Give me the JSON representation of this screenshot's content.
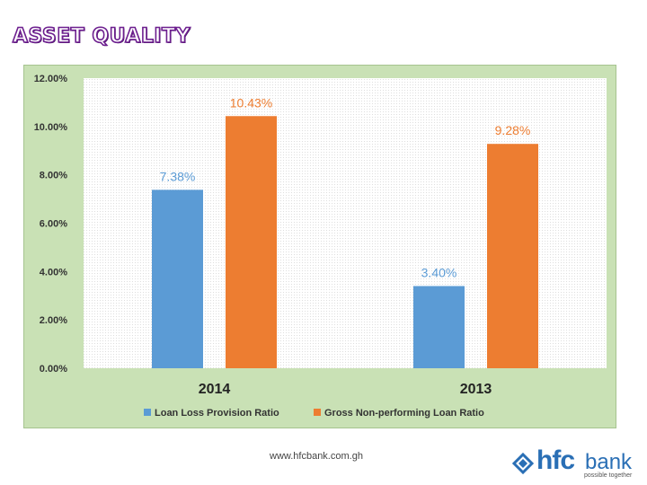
{
  "slide": {
    "title": "ASSET QUALITY",
    "footer_url": "www.hfcbank.com.gh",
    "logo": {
      "hfc": "hfc",
      "bank": "bank",
      "tagline": "possible together"
    }
  },
  "colors": {
    "series_blue": "#5b9bd5",
    "series_orange": "#ed7d31",
    "plot_background": "#c9e1b5",
    "title_outline": "#6d1f8f",
    "logo_blue": "#2a6fb5"
  },
  "chart_data": {
    "type": "bar",
    "title": "",
    "xlabel": "",
    "ylabel": "",
    "categories": [
      "2014",
      "2013"
    ],
    "series": [
      {
        "name": "Loan Loss Provision Ratio",
        "values": [
          7.38,
          3.4
        ],
        "labels": [
          "7.38%",
          "3.40%"
        ],
        "color": "#5b9bd5"
      },
      {
        "name": "Gross Non-performing Loan Ratio",
        "values": [
          10.43,
          9.28
        ],
        "labels": [
          "10.43%",
          "9.28%"
        ],
        "color": "#ed7d31"
      }
    ],
    "ylim": [
      0,
      12
    ],
    "y_ticks": [
      {
        "value": 0,
        "label": "0.00%"
      },
      {
        "value": 2,
        "label": "2.00%"
      },
      {
        "value": 4,
        "label": "4.00%"
      },
      {
        "value": 6,
        "label": "6.00%"
      },
      {
        "value": 8,
        "label": "8.00%"
      },
      {
        "value": 10,
        "label": "10.00%"
      },
      {
        "value": 12,
        "label": "12.00%"
      }
    ],
    "grid": false,
    "legend_position": "bottom"
  }
}
